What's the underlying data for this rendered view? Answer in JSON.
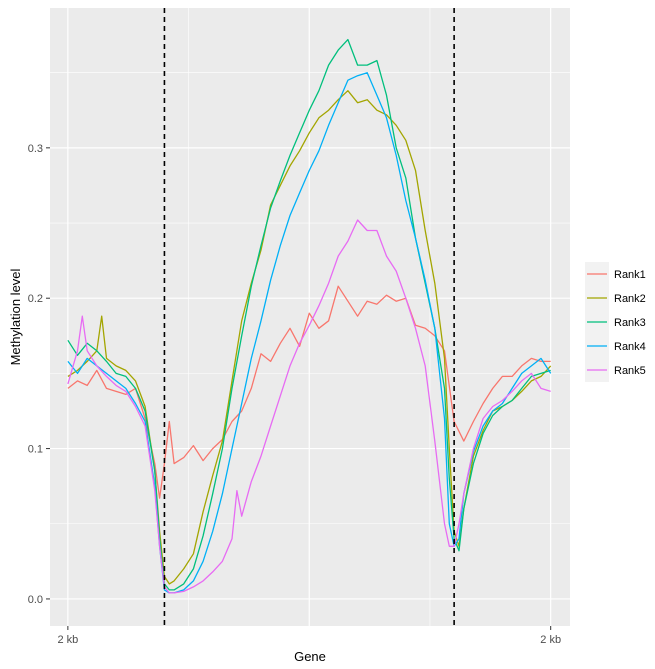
{
  "chart_data": {
    "type": "line",
    "title": "",
    "xlabel": "Gene",
    "ylabel": "Methylation level",
    "ylim": [
      -0.018,
      0.393
    ],
    "xlim": [
      -3.7,
      104
    ],
    "y_ticks": [
      {
        "value": 0.0,
        "label": "0.0"
      },
      {
        "value": 0.1,
        "label": "0.1"
      },
      {
        "value": 0.2,
        "label": "0.2"
      },
      {
        "value": 0.3,
        "label": "0.3"
      }
    ],
    "x_ticks": [
      {
        "value": 0,
        "label": "2 kb"
      },
      {
        "value": 100,
        "label": "2 kb"
      }
    ],
    "gene_boundaries": [
      20,
      80
    ],
    "grid": true,
    "legend_position": "right",
    "colors": {
      "panel": "#ebebeb",
      "grid_major": "#ffffff",
      "boundary_line": "#000000"
    },
    "series": [
      {
        "name": "Rank1",
        "color": "#F8766D",
        "points": [
          [
            0,
            0.14
          ],
          [
            2,
            0.145
          ],
          [
            4,
            0.142
          ],
          [
            6,
            0.152
          ],
          [
            8,
            0.14
          ],
          [
            10,
            0.138
          ],
          [
            12,
            0.136
          ],
          [
            14,
            0.14
          ],
          [
            16,
            0.12
          ],
          [
            18,
            0.09
          ],
          [
            19,
            0.067
          ],
          [
            20,
            0.09
          ],
          [
            21,
            0.118
          ],
          [
            22,
            0.09
          ],
          [
            24,
            0.094
          ],
          [
            26,
            0.102
          ],
          [
            28,
            0.092
          ],
          [
            30,
            0.1
          ],
          [
            32,
            0.106
          ],
          [
            34,
            0.118
          ],
          [
            36,
            0.125
          ],
          [
            38,
            0.14
          ],
          [
            40,
            0.163
          ],
          [
            42,
            0.158
          ],
          [
            44,
            0.17
          ],
          [
            46,
            0.18
          ],
          [
            48,
            0.168
          ],
          [
            50,
            0.19
          ],
          [
            52,
            0.18
          ],
          [
            54,
            0.185
          ],
          [
            56,
            0.208
          ],
          [
            58,
            0.198
          ],
          [
            60,
            0.188
          ],
          [
            62,
            0.198
          ],
          [
            64,
            0.196
          ],
          [
            66,
            0.202
          ],
          [
            68,
            0.198
          ],
          [
            70,
            0.2
          ],
          [
            72,
            0.182
          ],
          [
            74,
            0.18
          ],
          [
            76,
            0.175
          ],
          [
            78,
            0.165
          ],
          [
            80,
            0.118
          ],
          [
            82,
            0.105
          ],
          [
            84,
            0.118
          ],
          [
            86,
            0.13
          ],
          [
            88,
            0.14
          ],
          [
            90,
            0.148
          ],
          [
            92,
            0.148
          ],
          [
            94,
            0.155
          ],
          [
            96,
            0.16
          ],
          [
            98,
            0.158
          ],
          [
            100,
            0.158
          ]
        ]
      },
      {
        "name": "Rank2",
        "color": "#A3A500",
        "points": [
          [
            0,
            0.148
          ],
          [
            2,
            0.152
          ],
          [
            4,
            0.158
          ],
          [
            6,
            0.165
          ],
          [
            7,
            0.188
          ],
          [
            8,
            0.16
          ],
          [
            10,
            0.155
          ],
          [
            12,
            0.152
          ],
          [
            14,
            0.145
          ],
          [
            16,
            0.128
          ],
          [
            18,
            0.085
          ],
          [
            19,
            0.045
          ],
          [
            20,
            0.015
          ],
          [
            21,
            0.01
          ],
          [
            22,
            0.012
          ],
          [
            24,
            0.02
          ],
          [
            26,
            0.03
          ],
          [
            28,
            0.058
          ],
          [
            30,
            0.082
          ],
          [
            32,
            0.105
          ],
          [
            34,
            0.145
          ],
          [
            36,
            0.185
          ],
          [
            38,
            0.21
          ],
          [
            40,
            0.232
          ],
          [
            42,
            0.262
          ],
          [
            44,
            0.275
          ],
          [
            46,
            0.288
          ],
          [
            48,
            0.298
          ],
          [
            50,
            0.31
          ],
          [
            52,
            0.32
          ],
          [
            54,
            0.325
          ],
          [
            56,
            0.332
          ],
          [
            58,
            0.338
          ],
          [
            60,
            0.33
          ],
          [
            62,
            0.332
          ],
          [
            64,
            0.325
          ],
          [
            66,
            0.322
          ],
          [
            68,
            0.315
          ],
          [
            70,
            0.305
          ],
          [
            72,
            0.285
          ],
          [
            74,
            0.245
          ],
          [
            76,
            0.21
          ],
          [
            78,
            0.16
          ],
          [
            79,
            0.1
          ],
          [
            80,
            0.045
          ],
          [
            81,
            0.035
          ],
          [
            82,
            0.06
          ],
          [
            84,
            0.095
          ],
          [
            86,
            0.112
          ],
          [
            88,
            0.125
          ],
          [
            90,
            0.128
          ],
          [
            92,
            0.132
          ],
          [
            94,
            0.138
          ],
          [
            96,
            0.145
          ],
          [
            98,
            0.148
          ],
          [
            100,
            0.155
          ]
        ]
      },
      {
        "name": "Rank3",
        "color": "#00BF7D",
        "points": [
          [
            0,
            0.172
          ],
          [
            2,
            0.162
          ],
          [
            4,
            0.17
          ],
          [
            6,
            0.165
          ],
          [
            8,
            0.158
          ],
          [
            10,
            0.15
          ],
          [
            12,
            0.148
          ],
          [
            14,
            0.14
          ],
          [
            16,
            0.125
          ],
          [
            18,
            0.085
          ],
          [
            19,
            0.04
          ],
          [
            20,
            0.01
          ],
          [
            21,
            0.006
          ],
          [
            22,
            0.006
          ],
          [
            24,
            0.01
          ],
          [
            26,
            0.02
          ],
          [
            28,
            0.042
          ],
          [
            30,
            0.07
          ],
          [
            32,
            0.1
          ],
          [
            34,
            0.14
          ],
          [
            36,
            0.175
          ],
          [
            38,
            0.208
          ],
          [
            40,
            0.235
          ],
          [
            42,
            0.26
          ],
          [
            44,
            0.278
          ],
          [
            46,
            0.295
          ],
          [
            48,
            0.31
          ],
          [
            50,
            0.325
          ],
          [
            52,
            0.338
          ],
          [
            54,
            0.355
          ],
          [
            56,
            0.365
          ],
          [
            58,
            0.372
          ],
          [
            60,
            0.355
          ],
          [
            62,
            0.355
          ],
          [
            64,
            0.358
          ],
          [
            66,
            0.335
          ],
          [
            68,
            0.3
          ],
          [
            70,
            0.28
          ],
          [
            72,
            0.24
          ],
          [
            74,
            0.21
          ],
          [
            76,
            0.18
          ],
          [
            78,
            0.14
          ],
          [
            79,
            0.08
          ],
          [
            80,
            0.04
          ],
          [
            81,
            0.032
          ],
          [
            82,
            0.06
          ],
          [
            84,
            0.09
          ],
          [
            86,
            0.11
          ],
          [
            88,
            0.122
          ],
          [
            90,
            0.128
          ],
          [
            92,
            0.132
          ],
          [
            94,
            0.14
          ],
          [
            96,
            0.148
          ],
          [
            98,
            0.15
          ],
          [
            100,
            0.152
          ]
        ]
      },
      {
        "name": "Rank4",
        "color": "#00B0F6",
        "points": [
          [
            0,
            0.158
          ],
          [
            2,
            0.15
          ],
          [
            4,
            0.16
          ],
          [
            6,
            0.155
          ],
          [
            8,
            0.15
          ],
          [
            10,
            0.145
          ],
          [
            12,
            0.14
          ],
          [
            14,
            0.13
          ],
          [
            16,
            0.118
          ],
          [
            18,
            0.075
          ],
          [
            19,
            0.035
          ],
          [
            20,
            0.006
          ],
          [
            21,
            0.004
          ],
          [
            22,
            0.004
          ],
          [
            24,
            0.006
          ],
          [
            26,
            0.012
          ],
          [
            28,
            0.025
          ],
          [
            30,
            0.045
          ],
          [
            32,
            0.07
          ],
          [
            34,
            0.1
          ],
          [
            36,
            0.13
          ],
          [
            38,
            0.16
          ],
          [
            40,
            0.185
          ],
          [
            42,
            0.212
          ],
          [
            44,
            0.235
          ],
          [
            46,
            0.255
          ],
          [
            48,
            0.27
          ],
          [
            50,
            0.285
          ],
          [
            52,
            0.298
          ],
          [
            54,
            0.315
          ],
          [
            56,
            0.33
          ],
          [
            58,
            0.345
          ],
          [
            60,
            0.348
          ],
          [
            62,
            0.35
          ],
          [
            64,
            0.335
          ],
          [
            66,
            0.32
          ],
          [
            68,
            0.295
          ],
          [
            70,
            0.265
          ],
          [
            72,
            0.24
          ],
          [
            74,
            0.212
          ],
          [
            76,
            0.18
          ],
          [
            78,
            0.12
          ],
          [
            79,
            0.05
          ],
          [
            80,
            0.035
          ],
          [
            81,
            0.04
          ],
          [
            82,
            0.07
          ],
          [
            84,
            0.098
          ],
          [
            86,
            0.115
          ],
          [
            88,
            0.125
          ],
          [
            90,
            0.13
          ],
          [
            92,
            0.14
          ],
          [
            94,
            0.15
          ],
          [
            96,
            0.155
          ],
          [
            98,
            0.16
          ],
          [
            100,
            0.15
          ]
        ]
      },
      {
        "name": "Rank5",
        "color": "#E76BF3",
        "points": [
          [
            0,
            0.143
          ],
          [
            2,
            0.165
          ],
          [
            3,
            0.188
          ],
          [
            4,
            0.165
          ],
          [
            6,
            0.155
          ],
          [
            8,
            0.148
          ],
          [
            10,
            0.142
          ],
          [
            12,
            0.138
          ],
          [
            14,
            0.128
          ],
          [
            16,
            0.115
          ],
          [
            18,
            0.072
          ],
          [
            19,
            0.035
          ],
          [
            20,
            0.008
          ],
          [
            21,
            0.004
          ],
          [
            22,
            0.004
          ],
          [
            24,
            0.005
          ],
          [
            26,
            0.008
          ],
          [
            28,
            0.012
          ],
          [
            30,
            0.018
          ],
          [
            32,
            0.025
          ],
          [
            34,
            0.04
          ],
          [
            35,
            0.072
          ],
          [
            36,
            0.055
          ],
          [
            38,
            0.078
          ],
          [
            40,
            0.095
          ],
          [
            42,
            0.115
          ],
          [
            44,
            0.135
          ],
          [
            46,
            0.155
          ],
          [
            48,
            0.17
          ],
          [
            50,
            0.182
          ],
          [
            52,
            0.195
          ],
          [
            54,
            0.21
          ],
          [
            56,
            0.228
          ],
          [
            58,
            0.238
          ],
          [
            60,
            0.252
          ],
          [
            62,
            0.245
          ],
          [
            64,
            0.245
          ],
          [
            66,
            0.228
          ],
          [
            68,
            0.218
          ],
          [
            70,
            0.2
          ],
          [
            72,
            0.18
          ],
          [
            74,
            0.155
          ],
          [
            76,
            0.105
          ],
          [
            78,
            0.05
          ],
          [
            79,
            0.035
          ],
          [
            80,
            0.035
          ],
          [
            81,
            0.05
          ],
          [
            82,
            0.07
          ],
          [
            84,
            0.1
          ],
          [
            86,
            0.12
          ],
          [
            88,
            0.128
          ],
          [
            90,
            0.132
          ],
          [
            92,
            0.138
          ],
          [
            94,
            0.145
          ],
          [
            96,
            0.15
          ],
          [
            98,
            0.14
          ],
          [
            100,
            0.138
          ]
        ]
      }
    ]
  }
}
